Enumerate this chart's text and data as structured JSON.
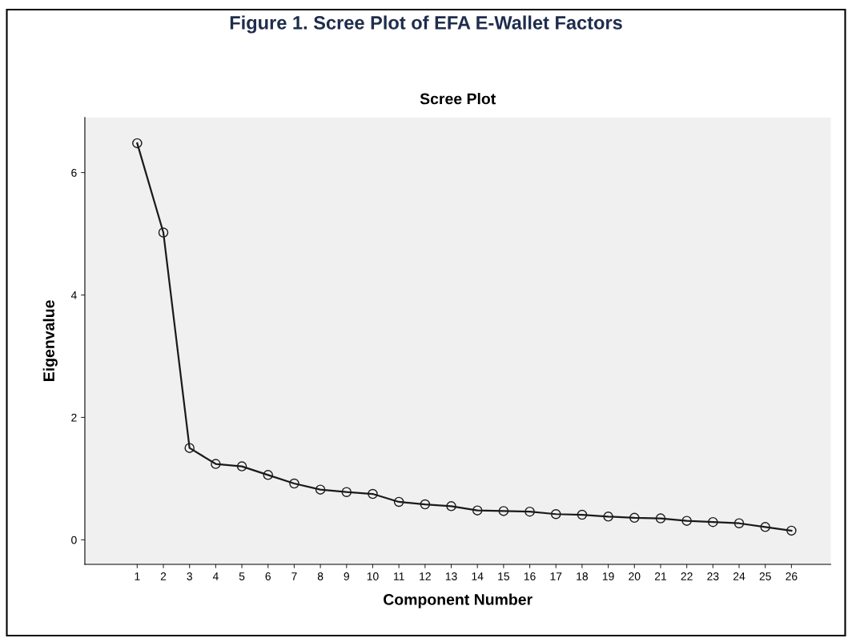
{
  "chart_data": {
    "type": "line",
    "title": "Figure 1. Scree Plot of EFA E-Wallet Factors",
    "subtitle": "Scree Plot",
    "xlabel": "Component Number",
    "ylabel": "Eigenvalue",
    "x": [
      1,
      2,
      3,
      4,
      5,
      6,
      7,
      8,
      9,
      10,
      11,
      12,
      13,
      14,
      15,
      16,
      17,
      18,
      19,
      20,
      21,
      22,
      23,
      24,
      25,
      26
    ],
    "series": [
      {
        "color": "#1a1a1a",
        "values": [
          6.48,
          5.02,
          1.5,
          1.24,
          1.2,
          1.06,
          0.92,
          0.82,
          0.78,
          0.75,
          0.62,
          0.58,
          0.55,
          0.48,
          0.47,
          0.46,
          0.42,
          0.41,
          0.38,
          0.36,
          0.35,
          0.31,
          0.29,
          0.27,
          0.21,
          0.15
        ]
      }
    ],
    "marker": "circle",
    "line_style": "solid",
    "grid": false,
    "xlim": [
      -1,
      27.5
    ],
    "xticks": [
      1,
      2,
      3,
      4,
      5,
      6,
      7,
      8,
      9,
      10,
      11,
      12,
      13,
      14,
      15,
      16,
      17,
      18,
      19,
      20,
      21,
      22,
      23,
      24,
      25,
      26
    ],
    "ylim": [
      -0.4,
      6.9
    ],
    "yticks": [
      0,
      2,
      4,
      6
    ]
  }
}
